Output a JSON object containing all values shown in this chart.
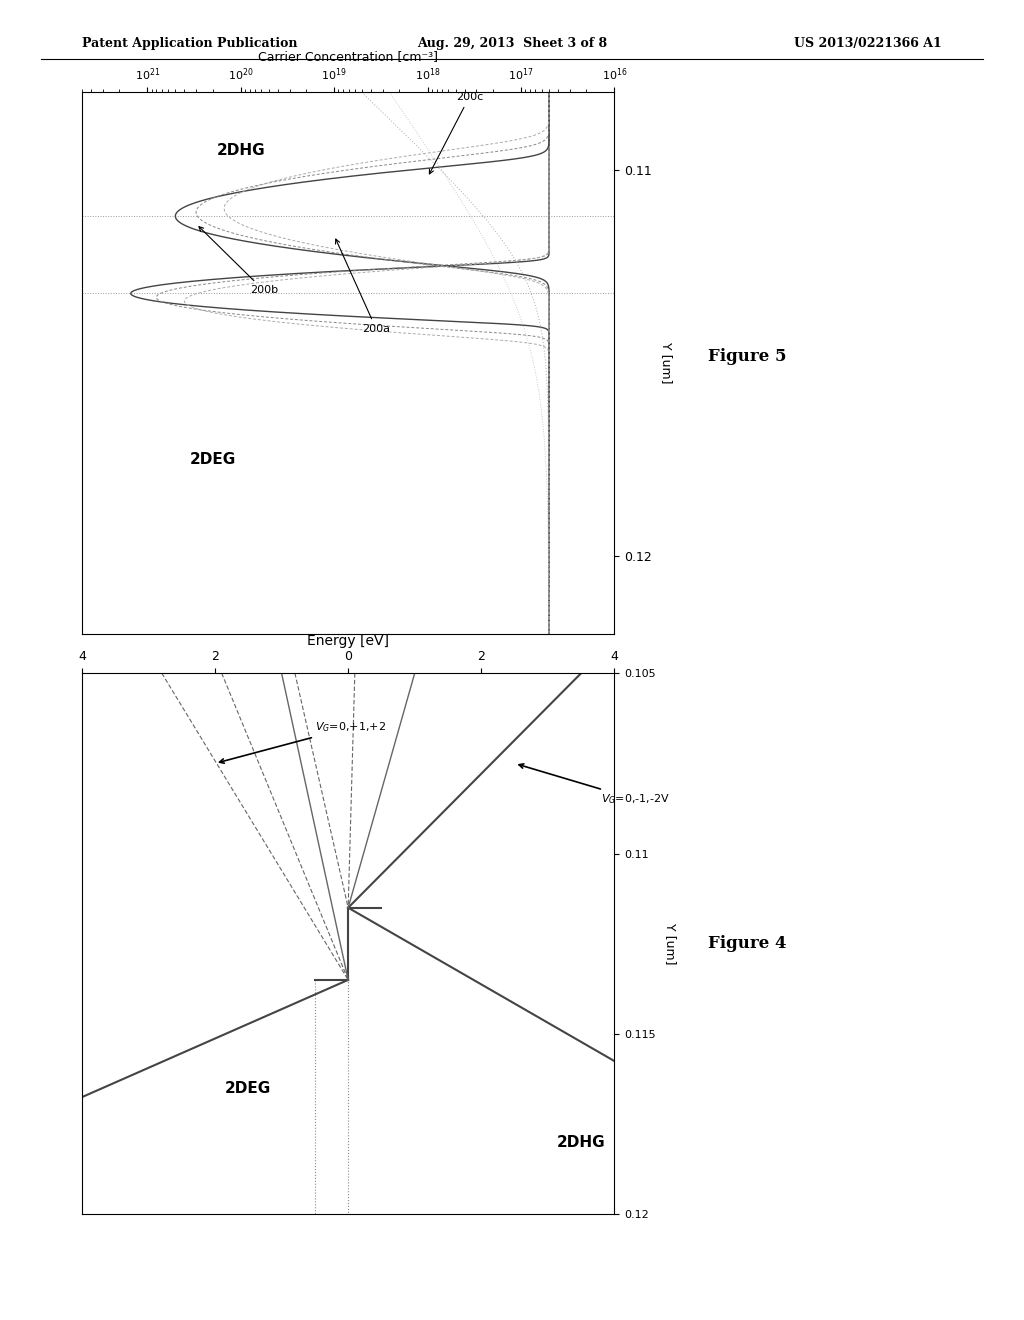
{
  "header_left": "Patent Application Publication",
  "header_center": "Aug. 29, 2013  Sheet 3 of 8",
  "header_right": "US 2013/0221366 A1",
  "fig4_title": "Figure 4",
  "fig5_title": "Figure 5",
  "fig4_xlabel": "Energy [eV]",
  "fig4_ylabel": "Y [um]",
  "fig5_xlabel": "Carrier Concentration [cm-3]",
  "fig5_ylabel": "Y [um]",
  "background_color": "#ffffff"
}
